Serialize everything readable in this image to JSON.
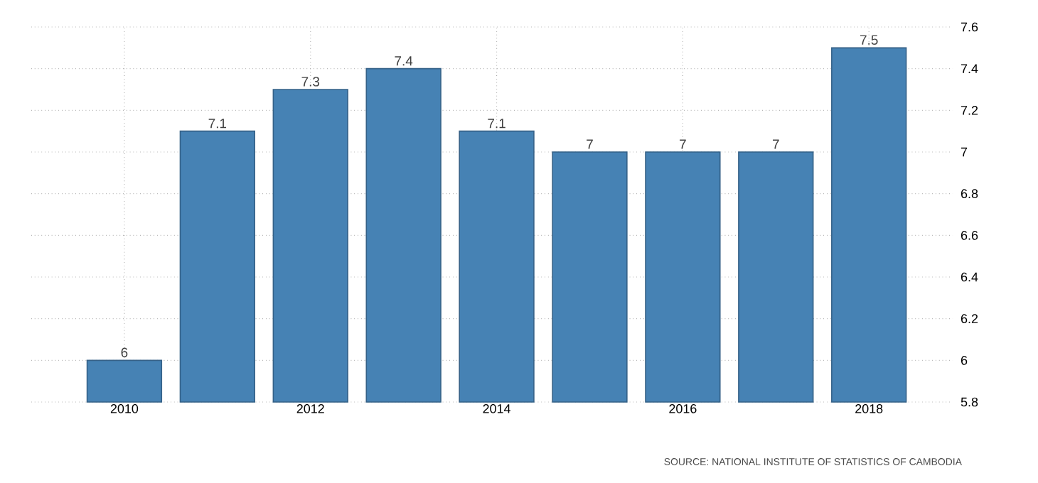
{
  "chart_data": {
    "type": "bar",
    "x": [
      2010,
      2011,
      2012,
      2013,
      2014,
      2015,
      2016,
      2017,
      2018
    ],
    "values": [
      6,
      7.1,
      7.3,
      7.4,
      7.1,
      7,
      7,
      7,
      7.5
    ],
    "color": "#4682b4",
    "xlim": [
      2009,
      2018.9
    ],
    "xticks": [
      2010,
      2012,
      2014,
      2016,
      2018
    ],
    "ylim": [
      5.8,
      7.6
    ],
    "yticks": [
      5.8,
      6,
      6.2,
      6.4,
      6.6,
      6.8,
      7,
      7.2,
      7.4,
      7.6
    ],
    "grid": true,
    "data_labels": true,
    "annotations": [
      "SOURCE: NATIONAL INSTITUTE OF STATISTICS OF CAMBODIA"
    ]
  }
}
